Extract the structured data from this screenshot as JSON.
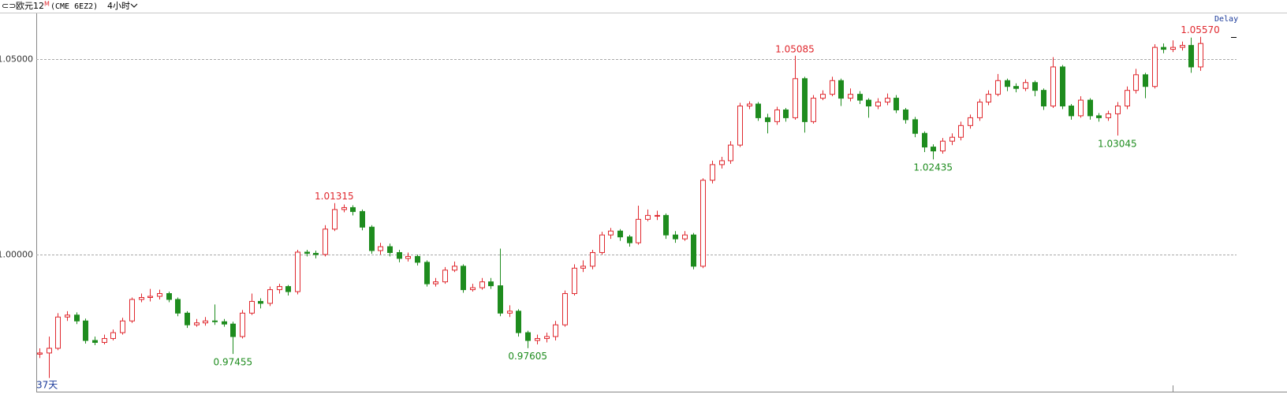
{
  "header": {
    "title": "欧元12",
    "badge": "M",
    "contract": "(CME 6EZ2)",
    "interval": "4小时"
  },
  "chart_data": {
    "type": "candlestick",
    "delay": "Delay",
    "duration": "37天",
    "ylim": [
      0.9649,
      1.0619
    ],
    "yticks": [
      {
        "value": 1.0,
        "label": "1.00000"
      },
      {
        "value": 1.05,
        "label": "1.05000"
      }
    ],
    "grid": true,
    "up_color": "#e0282e",
    "down_color": "#1e8c1e",
    "series": {
      "open": [
        0.9745,
        0.9748,
        0.976,
        0.984,
        0.9845,
        0.983,
        0.978,
        0.9775,
        0.9785,
        0.98,
        0.983,
        0.9885,
        0.989,
        0.9893,
        0.99,
        0.9885,
        0.985,
        0.982,
        0.9825,
        0.983,
        0.9828,
        0.9822,
        0.979,
        0.985,
        0.988,
        0.9875,
        0.991,
        0.9918,
        0.9905,
        1.0006,
        1.0003,
        1.0,
        1.0065,
        1.0115,
        1.012,
        1.011,
        1.007,
        1.001,
        1.002,
        1.0005,
        0.999,
        0.9995,
        0.998,
        0.9925,
        0.993,
        0.996,
        0.997,
        0.991,
        0.9915,
        0.993,
        0.992,
        0.985,
        0.9855,
        0.98,
        0.978,
        0.9785,
        0.979,
        0.982,
        0.99,
        0.9965,
        0.997,
        1.0005,
        1.005,
        1.006,
        1.0045,
        1.003,
        1.009,
        1.01,
        1.01,
        1.005,
        1.004,
        1.005,
        0.997,
        1.019,
        1.023,
        1.024,
        1.028,
        1.038,
        1.0385,
        1.035,
        1.034,
        1.037,
        1.035,
        1.045,
        1.034,
        1.04,
        1.041,
        1.0445,
        1.04,
        1.041,
        1.0395,
        1.038,
        1.039,
        1.04,
        1.037,
        1.0345,
        1.031,
        1.0275,
        1.0265,
        1.029,
        1.03,
        1.033,
        1.035,
        1.039,
        1.041,
        1.0445,
        1.043,
        1.0425,
        1.044,
        1.042,
        1.038,
        1.048,
        1.038,
        1.0355,
        1.0395,
        1.0355,
        1.035,
        1.036,
        1.038,
        1.042,
        1.046,
        1.043,
        1.053,
        1.0525,
        1.053,
        1.0535,
        1.048
      ],
      "high": [
        0.976,
        0.979,
        0.985,
        0.9855,
        0.9852,
        0.9836,
        0.979,
        0.9795,
        0.9808,
        0.9838,
        0.989,
        0.99,
        0.9912,
        0.991,
        0.9905,
        0.989,
        0.9855,
        0.9835,
        0.984,
        0.9872,
        0.9835,
        0.9828,
        0.9858,
        0.99,
        0.9888,
        0.9918,
        0.9925,
        0.9922,
        1.0012,
        1.0012,
        1.001,
        1.0075,
        1.01315,
        1.0128,
        1.0126,
        1.0115,
        1.0075,
        1.003,
        1.0028,
        1.0012,
        1.0005,
        1.0,
        0.9985,
        0.994,
        0.9968,
        0.9982,
        0.9975,
        0.9925,
        0.994,
        0.994,
        1.0015,
        0.987,
        0.986,
        0.9805,
        0.9795,
        0.98,
        0.983,
        0.9908,
        0.9975,
        0.9985,
        1.0012,
        1.0058,
        1.0068,
        1.0065,
        1.005,
        1.0125,
        1.0115,
        1.0112,
        1.0105,
        1.006,
        1.006,
        1.0055,
        1.0195,
        1.024,
        1.025,
        1.029,
        1.0388,
        1.0392,
        1.039,
        1.036,
        1.0378,
        1.0375,
        1.05085,
        1.0455,
        1.0408,
        1.042,
        1.0455,
        1.045,
        1.0425,
        1.0418,
        1.04,
        1.04,
        1.0412,
        1.0408,
        1.0375,
        1.0352,
        1.0315,
        1.0282,
        1.0298,
        1.031,
        1.034,
        1.0358,
        1.0398,
        1.042,
        1.0462,
        1.045,
        1.0438,
        1.0448,
        1.0445,
        1.0425,
        1.0505,
        1.0485,
        1.0385,
        1.0405,
        1.04,
        1.0362,
        1.0368,
        1.039,
        1.043,
        1.0475,
        1.0465,
        1.0538,
        1.054,
        1.0548,
        1.0545,
        1.0555,
        1.0557
      ],
      "low": [
        0.9735,
        0.9684,
        0.9755,
        0.983,
        0.9822,
        0.9772,
        0.9768,
        0.977,
        0.978,
        0.9795,
        0.9825,
        0.9878,
        0.988,
        0.9885,
        0.9878,
        0.9842,
        0.9812,
        0.9815,
        0.9818,
        0.982,
        0.9815,
        0.97455,
        0.9785,
        0.9845,
        0.9862,
        0.9868,
        0.99,
        0.9895,
        0.9898,
        0.9995,
        0.999,
        0.9995,
        1.006,
        1.0108,
        1.01,
        1.0062,
        1.0002,
        1.0,
        0.9995,
        0.998,
        0.9982,
        0.9972,
        0.9918,
        0.9918,
        0.9925,
        0.9955,
        0.9902,
        0.9905,
        0.991,
        0.9912,
        0.9842,
        0.984,
        0.979,
        0.97605,
        0.977,
        0.9775,
        0.978,
        0.9815,
        0.9895,
        0.9955,
        0.9962,
        1.0,
        1.004,
        1.0035,
        1.002,
        1.0025,
        1.0085,
        1.0088,
        1.004,
        1.003,
        1.0035,
        0.9962,
        0.9965,
        1.0182,
        1.022,
        1.0232,
        1.0275,
        1.0372,
        1.0342,
        1.031,
        1.0332,
        1.034,
        1.0345,
        1.0312,
        1.0335,
        1.0395,
        1.0405,
        1.038,
        1.0392,
        1.0385,
        1.035,
        1.0372,
        1.0382,
        1.0362,
        1.0335,
        1.03,
        1.0262,
        1.02435,
        1.0258,
        1.028,
        1.0292,
        1.0322,
        1.0342,
        1.0382,
        1.0405,
        1.0418,
        1.0415,
        1.0418,
        1.0405,
        1.037,
        1.0375,
        1.0372,
        1.0345,
        1.035,
        1.0345,
        1.034,
        1.0342,
        1.03045,
        1.0372,
        1.0412,
        1.04,
        1.0425,
        1.0515,
        1.0518,
        1.0522,
        1.0465,
        1.047
      ],
      "close": [
        0.9748,
        0.976,
        0.984,
        0.9845,
        0.983,
        0.978,
        0.9775,
        0.9785,
        0.98,
        0.983,
        0.9885,
        0.989,
        0.9893,
        0.99,
        0.9885,
        0.985,
        0.982,
        0.9825,
        0.983,
        0.9828,
        0.9822,
        0.979,
        0.985,
        0.988,
        0.9875,
        0.991,
        0.9918,
        0.9905,
        1.0006,
        1.0003,
        1.0,
        1.0065,
        1.0115,
        1.012,
        1.011,
        1.007,
        1.001,
        1.002,
        1.0005,
        0.999,
        0.9995,
        0.998,
        0.9925,
        0.993,
        0.996,
        0.997,
        0.991,
        0.9915,
        0.993,
        0.992,
        0.985,
        0.9855,
        0.98,
        0.978,
        0.9785,
        0.979,
        0.982,
        0.99,
        0.9965,
        0.997,
        1.0005,
        1.005,
        1.006,
        1.0045,
        1.003,
        1.009,
        1.01,
        1.01,
        1.005,
        1.004,
        1.005,
        0.997,
        1.019,
        1.023,
        1.024,
        1.028,
        1.038,
        1.0385,
        1.035,
        1.034,
        1.037,
        1.035,
        1.045,
        1.034,
        1.04,
        1.041,
        1.0445,
        1.04,
        1.041,
        1.0395,
        1.038,
        1.039,
        1.04,
        1.037,
        1.0345,
        1.031,
        1.0275,
        1.0265,
        1.029,
        1.03,
        1.033,
        1.035,
        1.039,
        1.041,
        1.0445,
        1.043,
        1.0425,
        1.044,
        1.042,
        1.038,
        1.048,
        1.038,
        1.0355,
        1.0395,
        1.0355,
        1.035,
        1.036,
        1.038,
        1.042,
        1.046,
        1.043,
        1.053,
        1.0525,
        1.053,
        1.0535,
        1.048,
        1.054
      ]
    },
    "annotations": [
      {
        "label": "0.97455",
        "value": 0.97455,
        "at": "low"
      },
      {
        "label": "1.01315",
        "value": 1.01315,
        "at": "high"
      },
      {
        "label": "0.97605",
        "value": 0.97605,
        "at": "low"
      },
      {
        "label": "1.05085",
        "value": 1.05085,
        "at": "high"
      },
      {
        "label": "1.02435",
        "value": 1.02435,
        "at": "low"
      },
      {
        "label": "1.03045",
        "value": 1.03045,
        "at": "low"
      },
      {
        "label": "1.05570",
        "value": 1.0557,
        "at": "high"
      }
    ]
  }
}
